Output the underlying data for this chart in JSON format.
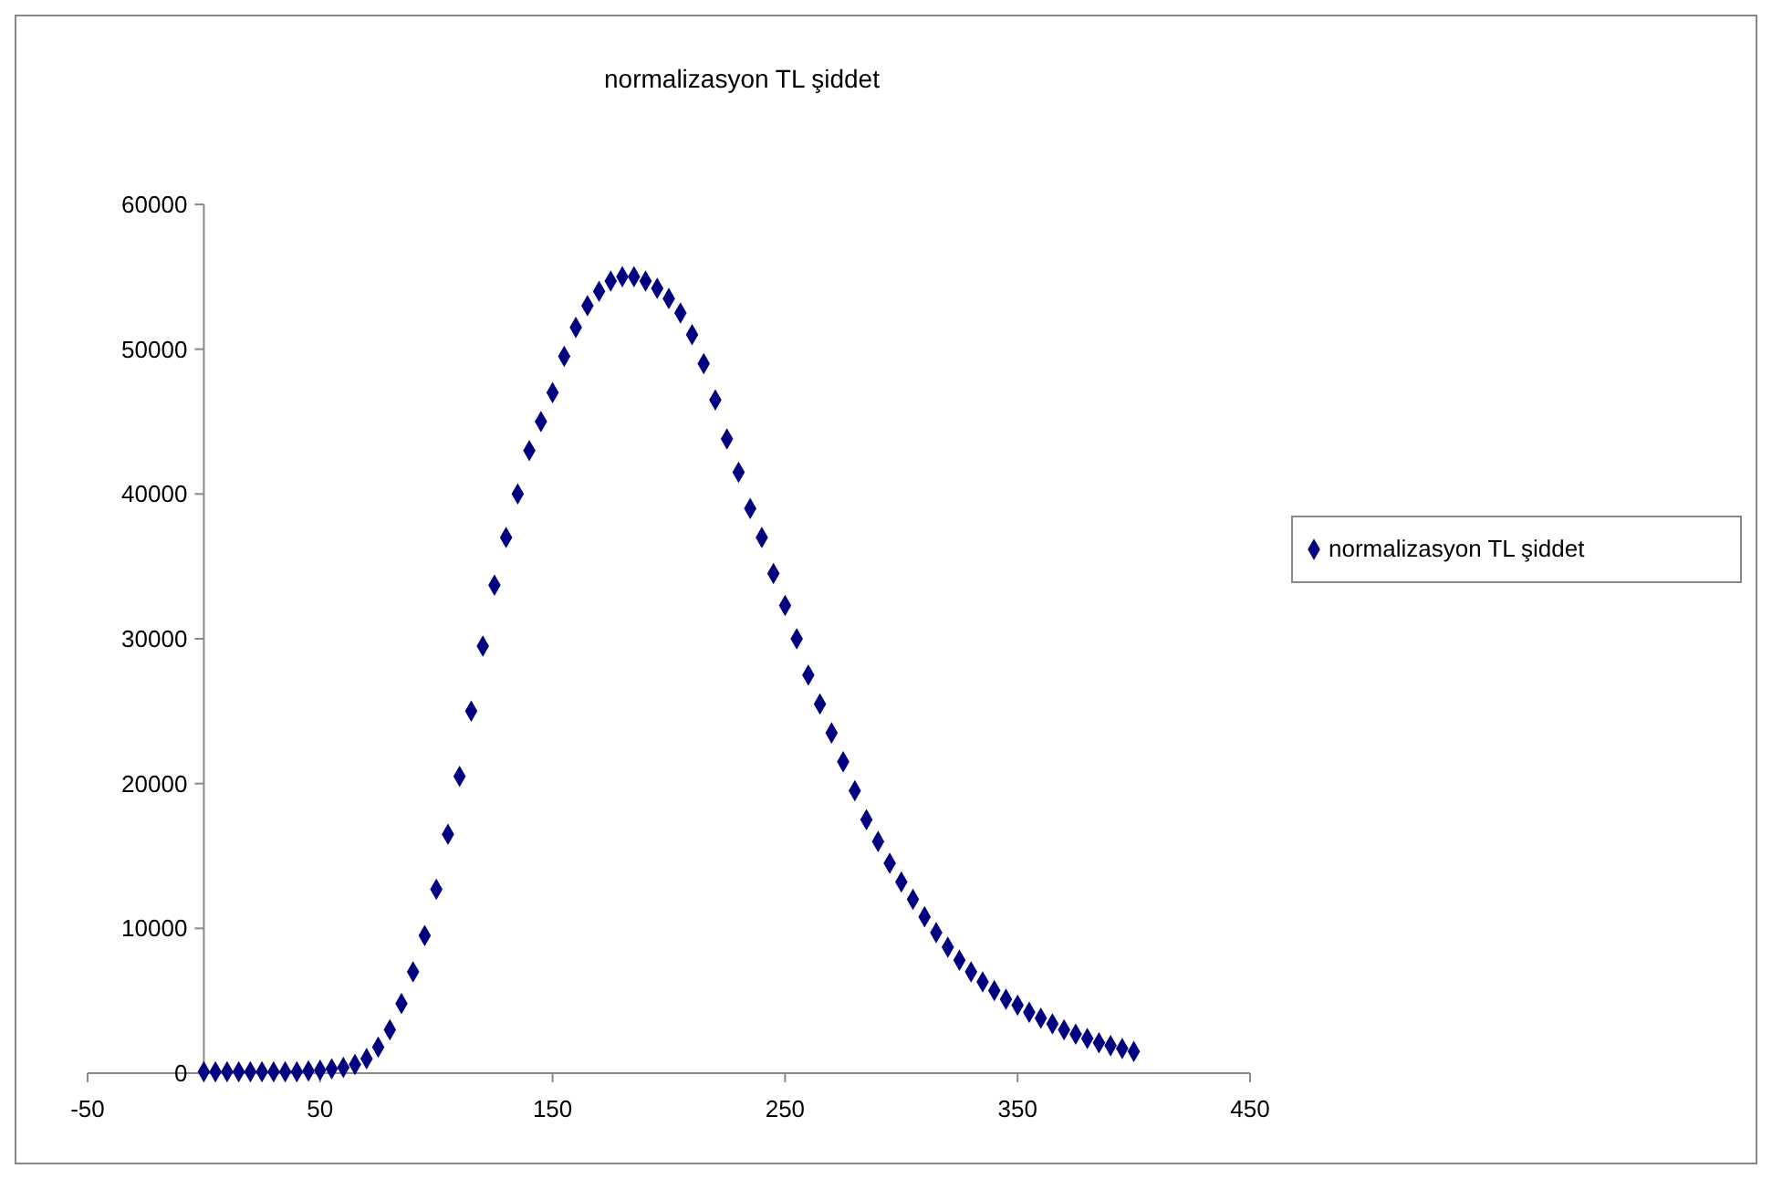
{
  "chart_data": {
    "type": "scatter",
    "title": "normalizasyon TL şiddet",
    "xlim": [
      -50,
      450
    ],
    "xticks": [
      -50,
      50,
      150,
      250,
      350,
      450
    ],
    "ylim": [
      0,
      60000
    ],
    "yticks": [
      0,
      10000,
      20000,
      30000,
      40000,
      50000,
      60000
    ],
    "grid": false,
    "legend": "right",
    "marker": "diamond",
    "series": [
      {
        "name": "normalizasyon TL şiddet",
        "color": "#000080",
        "x": [
          0,
          5,
          10,
          15,
          20,
          25,
          30,
          35,
          40,
          45,
          50,
          55,
          60,
          65,
          70,
          75,
          80,
          85,
          90,
          95,
          100,
          105,
          110,
          115,
          120,
          125,
          130,
          135,
          140,
          145,
          150,
          155,
          160,
          165,
          170,
          175,
          180,
          185,
          190,
          195,
          200,
          205,
          210,
          215,
          220,
          225,
          230,
          235,
          240,
          245,
          250,
          255,
          260,
          265,
          270,
          275,
          280,
          285,
          290,
          295,
          300,
          305,
          310,
          315,
          320,
          325,
          330,
          335,
          340,
          345,
          350,
          355,
          360,
          365,
          370,
          375,
          380,
          385,
          390,
          395,
          400
        ],
        "values": [
          100,
          100,
          100,
          100,
          100,
          100,
          100,
          100,
          100,
          150,
          200,
          300,
          400,
          600,
          1000,
          1800,
          3000,
          4800,
          7000,
          9500,
          12700,
          16500,
          20500,
          25000,
          29500,
          33700,
          37000,
          40000,
          43000,
          45000,
          47000,
          49500,
          51500,
          53000,
          54000,
          54700,
          55000,
          55000,
          54700,
          54200,
          53500,
          52500,
          51000,
          49000,
          46500,
          43800,
          41500,
          39000,
          37000,
          34500,
          32300,
          30000,
          27500,
          25500,
          23500,
          21500,
          19500,
          17500,
          16000,
          14500,
          13200,
          12000,
          10800,
          9700,
          8700,
          7800,
          7000,
          6300,
          5700,
          5100,
          4700,
          4200,
          3800,
          3400,
          3000,
          2700,
          2400,
          2100,
          1900,
          1700,
          1500
        ]
      }
    ]
  }
}
